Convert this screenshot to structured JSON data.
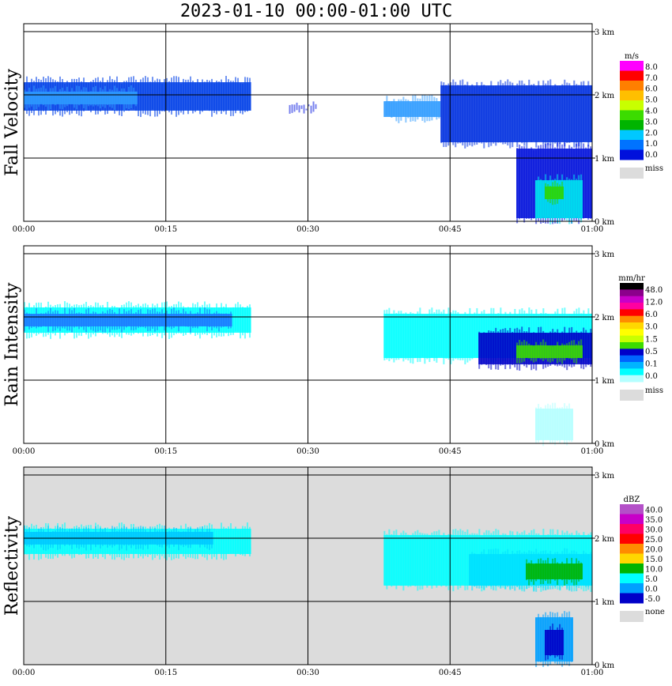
{
  "title": "2023-01-10   00:00-01:00 UTC",
  "x_ticks": [
    "00:00",
    "00:15",
    "00:30",
    "00:45",
    "01:00"
  ],
  "y_ticks": [
    "0 km",
    "1 km",
    "2 km",
    "3 km"
  ],
  "chart_data": [
    {
      "type": "heatmap",
      "ylabel": "Fall Velocity",
      "xlim_minutes": [
        0,
        60
      ],
      "ylim_km": [
        0,
        3.2
      ],
      "grid": true,
      "legend": {
        "unit": "m/s",
        "labels": [
          "8.0",
          "7.0",
          "6.0",
          "5.0",
          "4.0",
          "3.0",
          "2.0",
          "1.0",
          "0.0"
        ],
        "colors": [
          "#ff00ff",
          "#ff0000",
          "#ff7f00",
          "#ffbf00",
          "#c8ff00",
          "#3cdc00",
          "#00b400",
          "#00c8ff",
          "#0073ff",
          "#0010dc"
        ],
        "missing_label": "miss",
        "missing_color": "#dcdcdc"
      },
      "background": "#ffffff",
      "clouds": [
        {
          "x": [
            0,
            24
          ],
          "base_km": 1.7,
          "top_km": 2.25,
          "color": "#0040e8"
        },
        {
          "x": [
            0,
            12
          ],
          "base_km": 1.8,
          "top_km": 2.1,
          "color": "#2d9bff"
        },
        {
          "x": [
            28,
            31
          ],
          "base_km": 1.75,
          "top_km": 1.85,
          "color": "#0a1ae0"
        },
        {
          "x": [
            38,
            44
          ],
          "base_km": 1.6,
          "top_km": 1.95,
          "color": "#2d9bff"
        },
        {
          "x": [
            44,
            60
          ],
          "base_km": 1.2,
          "top_km": 2.2,
          "color": "#0030e0"
        },
        {
          "x": [
            52,
            60
          ],
          "base_km": 0.0,
          "top_km": 1.2,
          "color": "#0010dc"
        },
        {
          "x": [
            54,
            59
          ],
          "base_km": 0.0,
          "top_km": 0.7,
          "color": "#00e6f0"
        },
        {
          "x": [
            55,
            57
          ],
          "base_km": 0.3,
          "top_km": 0.6,
          "color": "#2ed600"
        }
      ]
    },
    {
      "type": "heatmap",
      "ylabel": "Rain Intensity",
      "xlim_minutes": [
        0,
        60
      ],
      "ylim_km": [
        0,
        3.2
      ],
      "grid": true,
      "legend": {
        "unit": "mm/hr",
        "labels": [
          "48.0",
          "12.0",
          "6.0",
          "3.0",
          "1.5",
          "0.5",
          "0.1",
          "0.0"
        ],
        "colors": [
          "#000000",
          "#8b008b",
          "#c800c8",
          "#ff00a0",
          "#ff0000",
          "#ff8c00",
          "#ffd700",
          "#ffff00",
          "#c8ff00",
          "#3cdc00",
          "#0000c8",
          "#0064ff",
          "#00b4ff",
          "#00ffff",
          "#b4ffff"
        ],
        "missing_label": "miss",
        "missing_color": "#dcdcdc"
      },
      "background": "#ffffff",
      "clouds": [
        {
          "x": [
            0,
            24
          ],
          "base_km": 1.7,
          "top_km": 2.2,
          "color": "#00ffff"
        },
        {
          "x": [
            0,
            22
          ],
          "base_km": 1.8,
          "top_km": 2.1,
          "color": "#1e78ff"
        },
        {
          "x": [
            38,
            60
          ],
          "base_km": 1.3,
          "top_km": 2.1,
          "color": "#00ffff"
        },
        {
          "x": [
            48,
            60
          ],
          "base_km": 1.2,
          "top_km": 1.8,
          "color": "#0000c8"
        },
        {
          "x": [
            52,
            59
          ],
          "base_km": 1.3,
          "top_km": 1.6,
          "color": "#3cdc00"
        },
        {
          "x": [
            54,
            58
          ],
          "base_km": 0.0,
          "top_km": 0.6,
          "color": "#b4ffff"
        }
      ]
    },
    {
      "type": "heatmap",
      "ylabel": "Reflectivity",
      "xlim_minutes": [
        0,
        60
      ],
      "ylim_km": [
        0,
        3.2
      ],
      "grid": true,
      "legend": {
        "unit": "dBZ",
        "labels": [
          "40.0",
          "35.0",
          "30.0",
          "25.0",
          "20.0",
          "15.0",
          "10.0",
          "5.0",
          "0.0",
          "-5.0"
        ],
        "colors": [
          "#b450c8",
          "#c800c8",
          "#ff0064",
          "#ff0000",
          "#ff8c00",
          "#ffd700",
          "#00b400",
          "#00ffff",
          "#00a0ff",
          "#0000c8"
        ],
        "missing_label": "none",
        "missing_color": "#dcdcdc"
      },
      "background": "#dcdcdc",
      "clouds": [
        {
          "x": [
            0,
            24
          ],
          "base_km": 1.7,
          "top_km": 2.2,
          "color": "#00ffff"
        },
        {
          "x": [
            0,
            20
          ],
          "base_km": 1.85,
          "top_km": 2.15,
          "color": "#00c8ff"
        },
        {
          "x": [
            38,
            60
          ],
          "base_km": 1.2,
          "top_km": 2.1,
          "color": "#00ffff"
        },
        {
          "x": [
            47,
            60
          ],
          "base_km": 1.2,
          "top_km": 1.8,
          "color": "#00e0ff"
        },
        {
          "x": [
            53,
            59
          ],
          "base_km": 1.3,
          "top_km": 1.65,
          "color": "#00b400"
        },
        {
          "x": [
            54,
            58
          ],
          "base_km": 0.0,
          "top_km": 0.8,
          "color": "#00a0ff"
        },
        {
          "x": [
            55,
            57
          ],
          "base_km": 0.1,
          "top_km": 0.6,
          "color": "#0000c8"
        }
      ]
    }
  ]
}
